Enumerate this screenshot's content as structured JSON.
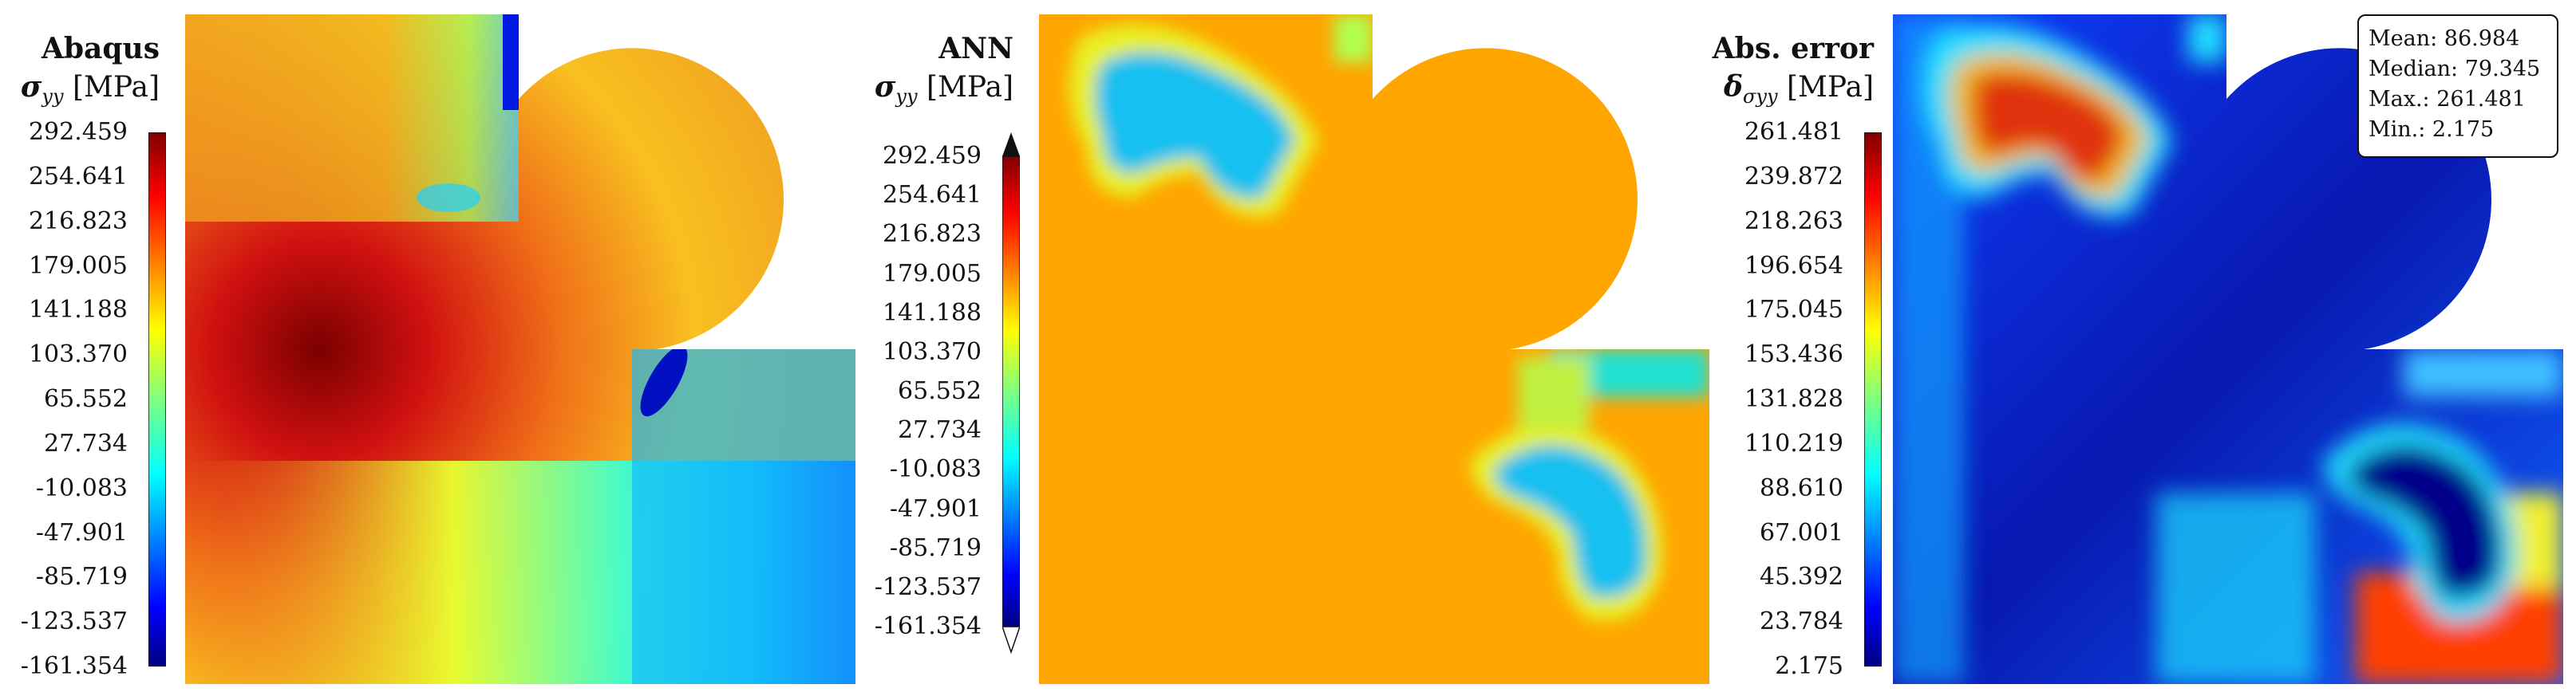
{
  "panels": [
    {
      "title": "Abaqus",
      "symbol": "σ",
      "subscript": "yy",
      "unit": "[MPa]",
      "ticks": [
        "292.459",
        "254.641",
        "216.823",
        "179.005",
        "141.188",
        "103.370",
        "65.552",
        "27.734",
        "-10.083",
        "-47.901",
        "-85.719",
        "-123.537",
        "-161.354"
      ]
    },
    {
      "title": "ANN",
      "symbol": "σ",
      "subscript": "yy",
      "unit": "[MPa]",
      "ticks": [
        "292.459",
        "254.641",
        "216.823",
        "179.005",
        "141.188",
        "103.370",
        "65.552",
        "27.734",
        "-10.083",
        "-47.901",
        "-85.719",
        "-123.537",
        "-161.354"
      ]
    },
    {
      "title": "Abs. error",
      "symbol": "δ",
      "subscript": "σyy",
      "unit": "[MPa]",
      "ticks": [
        "261.481",
        "239.872",
        "218.263",
        "196.654",
        "175.045",
        "153.436",
        "131.828",
        "110.219",
        "88.610",
        "67.001",
        "45.392",
        "23.784",
        "2.175"
      ]
    }
  ],
  "stats": {
    "mean": "Mean: 86.984",
    "median": "Median: 79.345",
    "max": "Max.: 261.481",
    "min": "Min.: 2.175"
  },
  "colormap": [
    "#00007f",
    "#0000ff",
    "#007fff",
    "#00ffff",
    "#7fff7f",
    "#ffff00",
    "#ff7f00",
    "#ff0000",
    "#7f0000"
  ],
  "field_colors": {
    "abaqus_deep_red": "#8a0000",
    "abaqus_orange": "#f08a1a",
    "ann_base": "#ffa500",
    "ann_low": "#17b8f0",
    "error_high": "#e04000",
    "error_low": "#0a1aa0"
  }
}
